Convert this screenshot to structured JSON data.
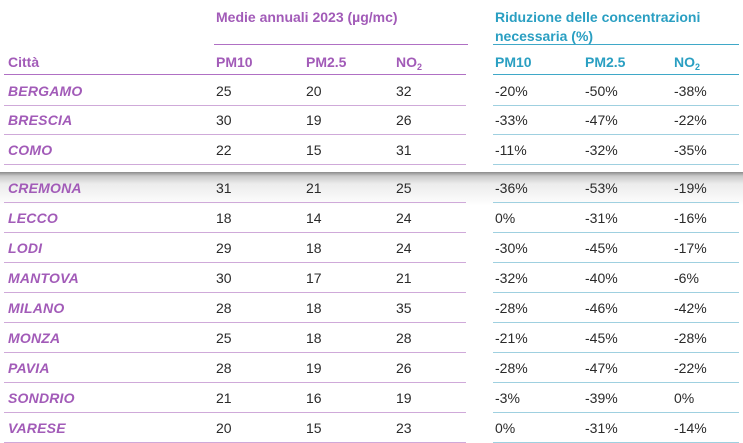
{
  "header": {
    "group_annual": "Medie annuali 2023 (µg/mc)",
    "group_reduction": "Riduzione delle concentrazioni necessaria (%)",
    "columns": {
      "city": "Città",
      "pm10_a": "PM10",
      "pm25_a": "PM2.5",
      "no2_a": "NO",
      "no2_a_sub": "2",
      "pm10_r": "PM10",
      "pm25_r": "PM2.5",
      "no2_r": "NO",
      "no2_r_sub": "2"
    }
  },
  "rows": [
    {
      "city": "BERGAMO",
      "pm10": "25",
      "pm25": "20",
      "no2": "32",
      "r_pm10": "-20%",
      "r_pm25": "-50%",
      "r_no2": "-38%"
    },
    {
      "city": "BRESCIA",
      "pm10": "30",
      "pm25": "19",
      "no2": "26",
      "r_pm10": "-33%",
      "r_pm25": "-47%",
      "r_no2": "-22%"
    },
    {
      "city": "COMO",
      "pm10": "22",
      "pm25": "15",
      "no2": "31",
      "r_pm10": "-11%",
      "r_pm25": "-32%",
      "r_no2": "-35%"
    },
    {
      "city": "CREMONA",
      "pm10": "31",
      "pm25": "21",
      "no2": "25",
      "r_pm10": "-36%",
      "r_pm25": "-53%",
      "r_no2": "-19%"
    },
    {
      "city": "LECCO",
      "pm10": "18",
      "pm25": "14",
      "no2": "24",
      "r_pm10": "0%",
      "r_pm25": "-31%",
      "r_no2": "-16%"
    },
    {
      "city": "LODI",
      "pm10": "29",
      "pm25": "18",
      "no2": "24",
      "r_pm10": "-30%",
      "r_pm25": "-45%",
      "r_no2": "-17%"
    },
    {
      "city": "MANTOVA",
      "pm10": "30",
      "pm25": "17",
      "no2": "21",
      "r_pm10": "-32%",
      "r_pm25": "-40%",
      "r_no2": "-6%"
    },
    {
      "city": "MILANO",
      "pm10": "28",
      "pm25": "18",
      "no2": "35",
      "r_pm10": "-28%",
      "r_pm25": "-46%",
      "r_no2": "-42%"
    },
    {
      "city": "MONZA",
      "pm10": "25",
      "pm25": "18",
      "no2": "28",
      "r_pm10": "-21%",
      "r_pm25": "-45%",
      "r_no2": "-28%"
    },
    {
      "city": "PAVIA",
      "pm10": "28",
      "pm25": "19",
      "no2": "26",
      "r_pm10": "-28%",
      "r_pm25": "-47%",
      "r_no2": "-22%"
    },
    {
      "city": "SONDRIO",
      "pm10": "21",
      "pm25": "16",
      "no2": "19",
      "r_pm10": "-3%",
      "r_pm25": "-39%",
      "r_no2": "0%"
    },
    {
      "city": "VARESE",
      "pm10": "20",
      "pm25": "15",
      "no2": "23",
      "r_pm10": "0%",
      "r_pm25": "-31%",
      "r_no2": "-14%"
    }
  ]
}
